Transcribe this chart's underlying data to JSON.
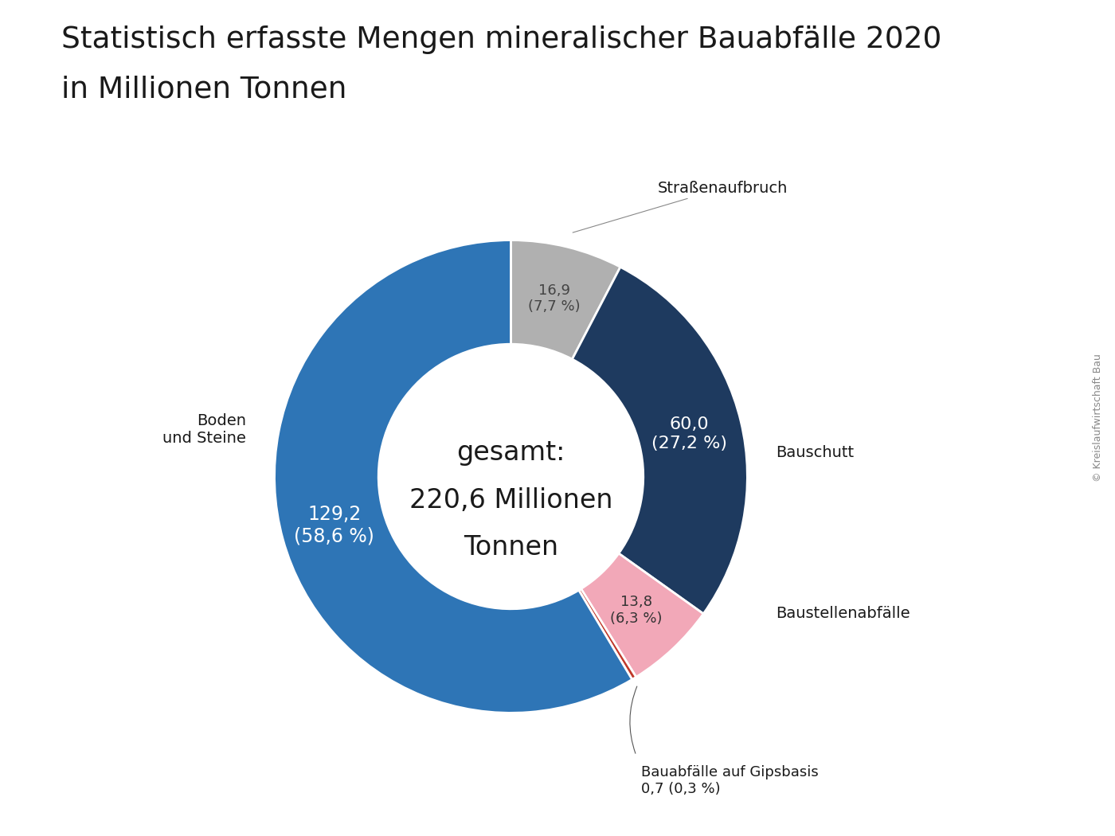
{
  "title_line1": "Statistisch erfasste Mengen mineralischer Bauabfälle 2020",
  "title_line2": "in Millionen Tonnen",
  "segments": [
    {
      "label": "Straßenaufbruch",
      "value": 16.9,
      "pct": 7.7,
      "color": "#b0b0b0",
      "text_color": "#444444"
    },
    {
      "label": "Bauschutt",
      "value": 60.0,
      "pct": 27.2,
      "color": "#1e3a5f",
      "text_color": "#ffffff"
    },
    {
      "label": "Baustellenabfälle",
      "value": 13.8,
      "pct": 6.3,
      "color": "#f2a8b8",
      "text_color": "#333333"
    },
    {
      "label": "Bauabfälle auf Gipsbasis",
      "value": 0.7,
      "pct": 0.3,
      "color": "#c0392b",
      "text_color": "#ffffff"
    },
    {
      "label": "Boden\nund Steine",
      "value": 129.2,
      "pct": 58.6,
      "color": "#2e75b6",
      "text_color": "#ffffff"
    }
  ],
  "center_text_line1": "gesamt:",
  "center_text_line2": "220,6 Millionen",
  "center_text_line3": "Tonnen",
  "total": 220.6,
  "background_color": "#ffffff",
  "watermark": "© Kreislaufwirtschaft Bau",
  "start_angle": 90
}
